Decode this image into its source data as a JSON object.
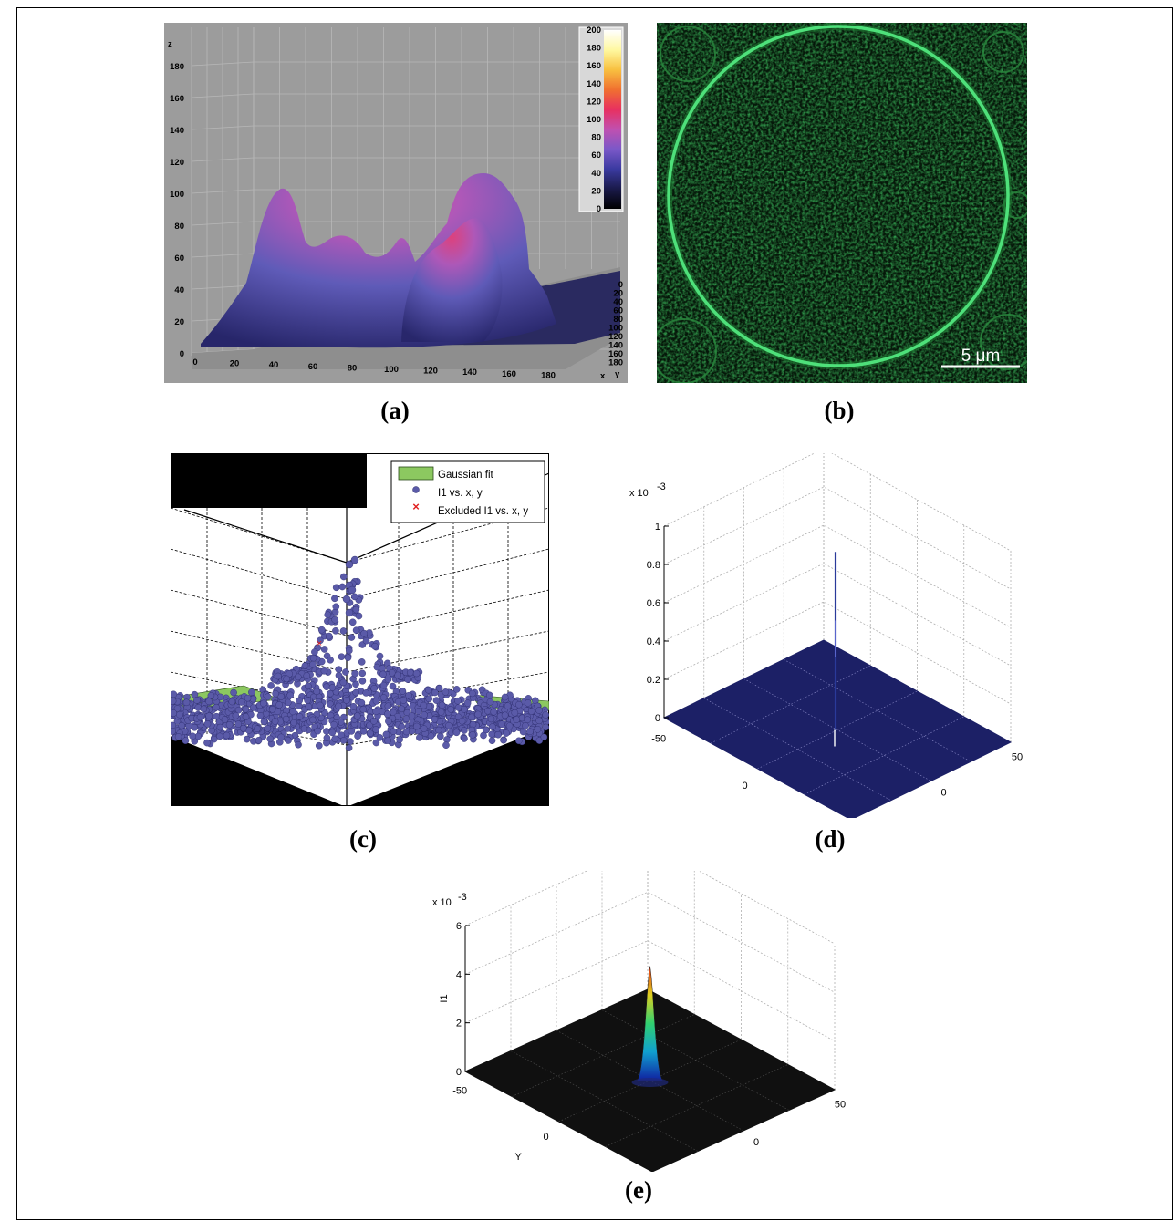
{
  "captions": {
    "a": "(a)",
    "b": "(b)",
    "c": "(c)",
    "d": "(d)",
    "e": "(e)"
  },
  "panel_b": {
    "scale_bar_label": "5 μm"
  },
  "colorbar_hex": [
    "#000000",
    "#1a1a4a",
    "#3a3aa0",
    "#7a58c8",
    "#c050b0",
    "#e83060",
    "#f07030",
    "#f8c040",
    "#fff8a0",
    "#ffffff"
  ],
  "chart_data": [
    {
      "panel": "a",
      "type": "surface",
      "zlabel": "z",
      "xlabel": "x",
      "ylabel": "y",
      "z_ticks": [
        "0",
        "20",
        "40",
        "60",
        "80",
        "100",
        "120",
        "140",
        "160",
        "180"
      ],
      "x_ticks": [
        "0",
        "20",
        "40",
        "60",
        "80",
        "100",
        "120",
        "140",
        "160",
        "180"
      ],
      "y_ticks": [
        "0",
        "20",
        "40",
        "60",
        "80",
        "100",
        "120",
        "140",
        "160",
        "180"
      ],
      "colorbar_ticks": [
        "0",
        "20",
        "40",
        "60",
        "80",
        "100",
        "120",
        "140",
        "160",
        "180",
        "200"
      ],
      "colormap": "dark-blue → purple → magenta → red → yellow → white",
      "background": "#9c9c9c"
    },
    {
      "panel": "c",
      "type": "scatter",
      "legend": [
        "Gaussian fit",
        "I1 vs. x, y",
        "Excluded I1 vs. x, y"
      ],
      "legend_placement": "top-right",
      "series_colors": [
        "#8cc860",
        "#5a5aa8",
        "#e02020"
      ]
    },
    {
      "panel": "d",
      "type": "surface",
      "z_exponent": "x 10",
      "z_exponent_power": "-3",
      "z_ticks": [
        "0",
        "0.2",
        "0.4",
        "0.6",
        "0.8",
        "1"
      ],
      "x_ticks": [
        "-50",
        "0",
        "50"
      ],
      "y_ticks": [
        "-50",
        "0",
        "50"
      ],
      "peak_value": 0.93,
      "surface_color": "#1c2066"
    },
    {
      "panel": "e",
      "type": "surface",
      "zlabel": "I1",
      "xlabel": "X",
      "ylabel": "Y",
      "z_exponent": "x 10",
      "z_exponent_power": "-3",
      "z_ticks": [
        "0",
        "2",
        "4",
        "6"
      ],
      "x_ticks": [
        "-50",
        "0",
        "50"
      ],
      "y_ticks": [
        "-50",
        "0",
        "50"
      ],
      "peak_value": 4.7,
      "surface_color": "#101010"
    }
  ]
}
